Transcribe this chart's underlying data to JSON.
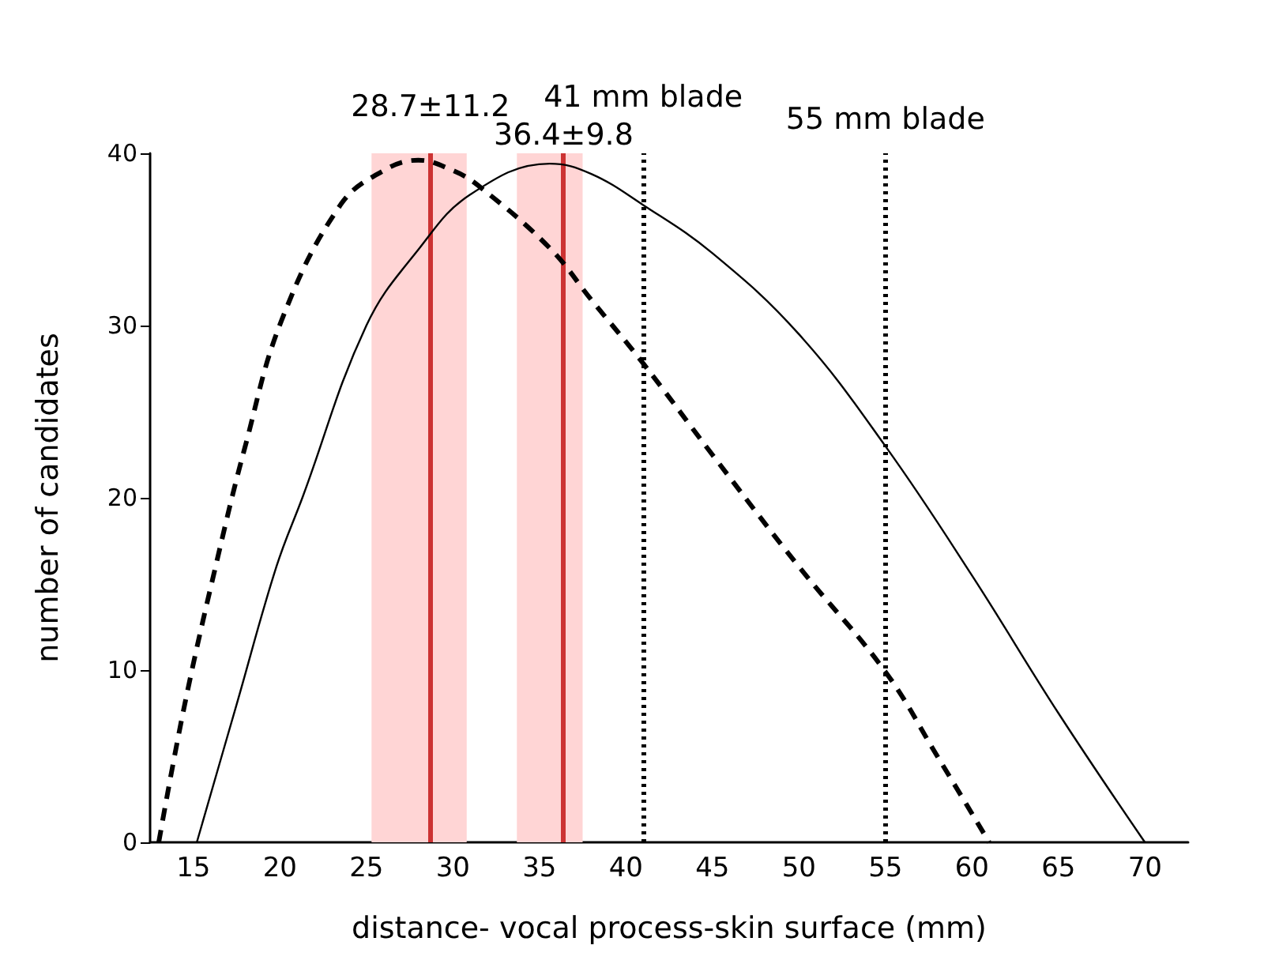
{
  "chart_data": {
    "type": "line",
    "xlabel": "distance- vocal process-skin surface (mm)",
    "ylabel": "number of candidates",
    "xlim": [
      12.5,
      72.5
    ],
    "xticks": [
      15,
      20,
      25,
      30,
      35,
      40,
      45,
      50,
      55,
      60,
      65,
      70
    ],
    "ylim": [
      0,
      40
    ],
    "yticks": [
      0,
      10,
      20,
      30,
      40
    ],
    "grid": false,
    "marker": "none",
    "series": [
      {
        "color": "#000000",
        "line_style": "dashed",
        "x": [
          13,
          14.5,
          16.4,
          18,
          20.1,
          23.5,
          26,
          28,
          30,
          31.5,
          35.6,
          38,
          41,
          45,
          50,
          55,
          58,
          61
        ],
        "values": [
          0,
          8,
          16.5,
          23,
          30.3,
          37,
          39,
          39.6,
          39,
          38.1,
          34.5,
          31.5,
          27.8,
          22.5,
          16,
          9.9,
          5,
          0
        ]
      },
      {
        "color": "#000000",
        "line_style": "solid",
        "x": [
          15.2,
          17.5,
          19.8,
          21.3,
          25,
          28,
          31,
          35.6,
          38,
          41,
          45,
          50,
          55,
          60,
          65,
          70
        ],
        "values": [
          0,
          8,
          16,
          20,
          30,
          34.4,
          37.6,
          39.4,
          38.8,
          37,
          34.2,
          29.5,
          23,
          15.5,
          7.5,
          0
        ]
      }
    ],
    "bands": [
      {
        "axis": "x",
        "from": 25.3,
        "to": 30.8,
        "color": "#ffd5d5"
      },
      {
        "axis": "x",
        "from": 33.7,
        "to": 37.5,
        "color": "#ffd5d5"
      }
    ],
    "ref_lines": [
      {
        "axis": "x",
        "value": 28.7,
        "label": "28.7±11.2",
        "color": "#cc3333",
        "line_style": "solid"
      },
      {
        "axis": "x",
        "value": 36.4,
        "label": "36.4±9.8",
        "color": "#cc3333",
        "line_style": "solid"
      },
      {
        "axis": "x",
        "value": 41,
        "label": "41 mm blade",
        "color": "#000000",
        "line_style": "dotted"
      },
      {
        "axis": "x",
        "value": 55,
        "label": "55 mm blade",
        "color": "#000000",
        "line_style": "dotted"
      }
    ]
  }
}
